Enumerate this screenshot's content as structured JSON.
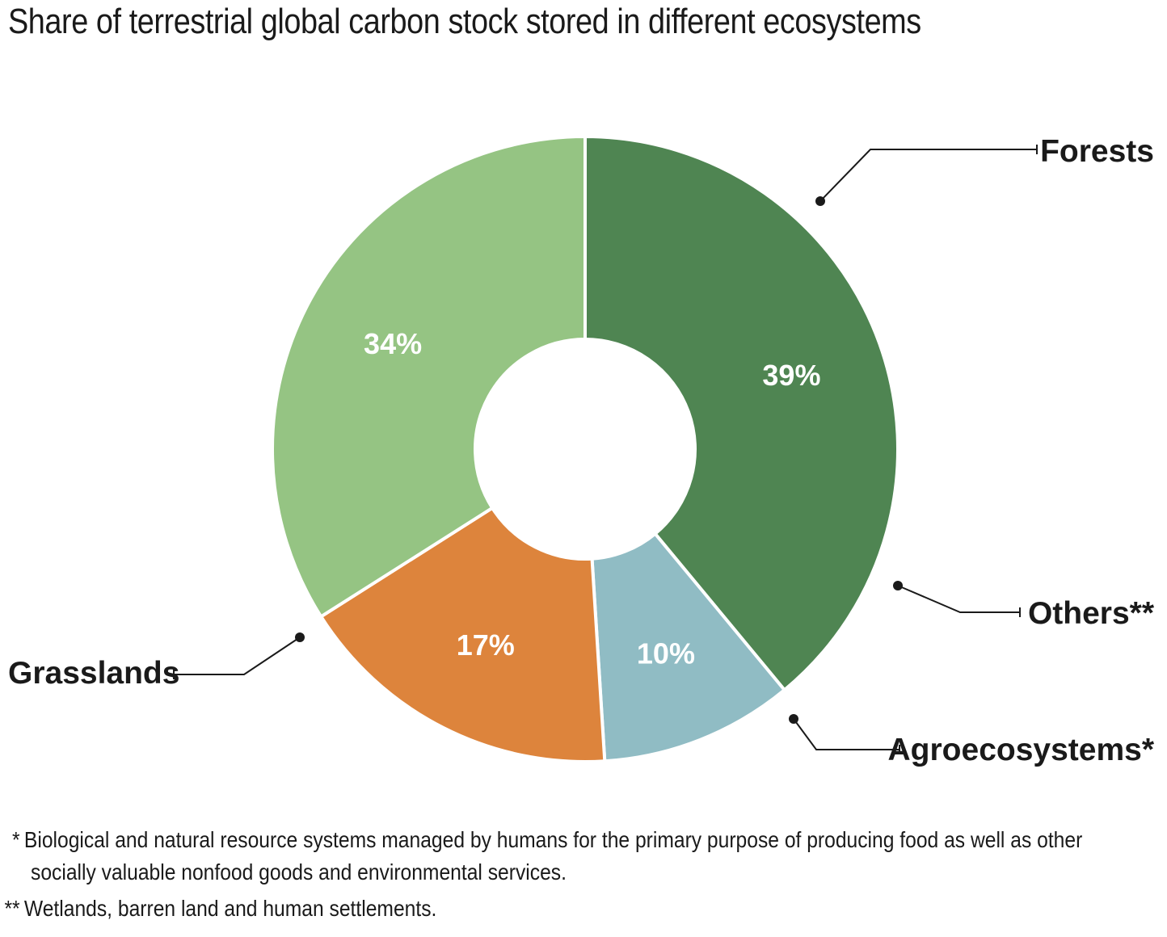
{
  "chart_data": {
    "type": "pie",
    "title": "Share of terrestrial global carbon stock stored in different ecosystems",
    "categories": [
      "Forests",
      "Others**",
      "Agroecosystems*",
      "Grasslands"
    ],
    "values": [
      39,
      10,
      17,
      34
    ],
    "value_labels": [
      "39%",
      "10%",
      "17%",
      "34%"
    ],
    "colors": [
      "#4f8552",
      "#90bcc4",
      "#dd843c",
      "#95c483"
    ],
    "donut": true,
    "legend": "callout labels with leader lines"
  },
  "footnotes": [
    {
      "marker": "*",
      "line1": "Biological and natural resource systems managed by humans for the primary purpose of producing food as well as other",
      "line2": "socially valuable nonfood goods and environmental services."
    },
    {
      "marker": "**",
      "line1": "Wetlands, barren land and human settlements."
    }
  ]
}
